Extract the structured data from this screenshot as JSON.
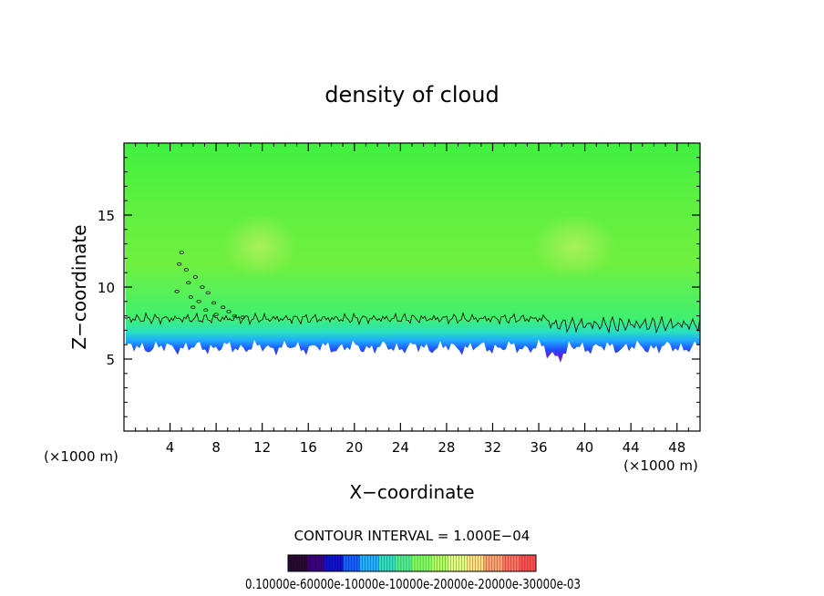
{
  "chart_data": {
    "type": "heatmap",
    "title": "density of cloud",
    "xlabel": "X−coordinate",
    "ylabel": "Z−coordinate",
    "x_unit_label": "(×1000 m)",
    "y_unit_label": "(×1000 m)",
    "xlim": [
      0,
      50
    ],
    "ylim": [
      0,
      20
    ],
    "x_ticks": [
      4,
      8,
      12,
      16,
      20,
      24,
      28,
      32,
      36,
      40,
      44,
      48
    ],
    "y_ticks": [
      5,
      10,
      15
    ],
    "x_tick_labels": [
      "4",
      "8",
      "12",
      "16",
      "20",
      "24",
      "28",
      "32",
      "36",
      "40",
      "44",
      "48"
    ],
    "y_tick_labels": [
      "5",
      "10",
      "15"
    ],
    "contour_interval_text": "CONTOUR INTERVAL = 1.000E−04",
    "colorbar_labels_text": "0.10000e-60000e-10000e-10000e-20000e-20000e-30000e-03",
    "colorbar_colors": [
      "#2a0a33",
      "#3a0080",
      "#1010d0",
      "#1060ff",
      "#20b0ff",
      "#30e0c0",
      "#50f090",
      "#80ff60",
      "#b0ff60",
      "#e0ff80",
      "#ffe080",
      "#ffa070",
      "#ff7060",
      "#ff5050"
    ],
    "field": {
      "cloud_base_km": 5.8,
      "cloud_top_km": 20,
      "bands": [
        {
          "z_bottom": 5.8,
          "z_top": 6.2,
          "color": "#8c1cd0"
        },
        {
          "z_bottom": 6.2,
          "z_top": 6.7,
          "color": "#3a28e0"
        },
        {
          "z_bottom": 6.7,
          "z_top": 7.3,
          "color": "#1e78ff"
        },
        {
          "z_bottom": 7.3,
          "z_top": 8.0,
          "color": "#22c8f0"
        },
        {
          "z_bottom": 8.0,
          "z_top": 9.0,
          "color": "#28e8a0"
        },
        {
          "z_bottom": 9.0,
          "z_top": 20,
          "color": "#58f040"
        }
      ],
      "contour_line_z_km": 7.8
    }
  }
}
